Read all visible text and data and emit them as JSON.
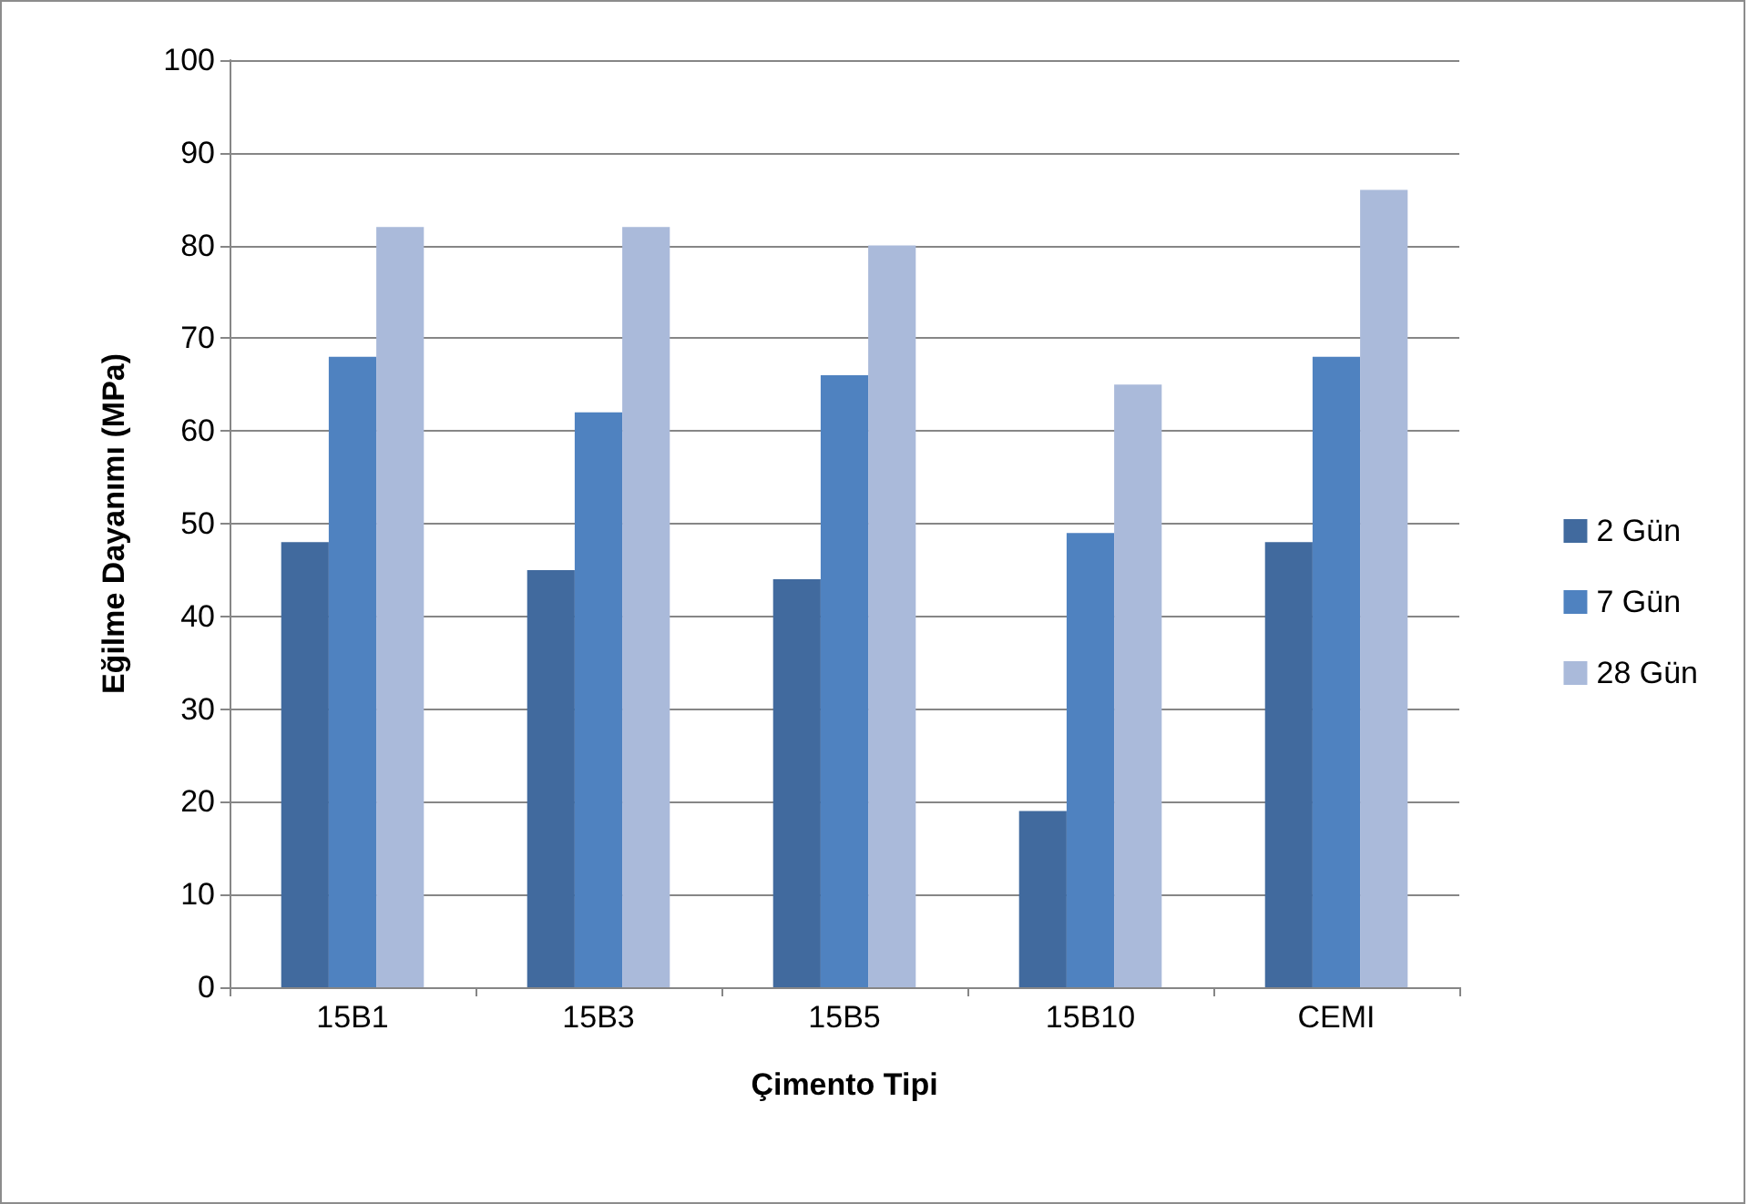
{
  "chart_data": {
    "type": "bar",
    "xlabel": "Çimento Tipi",
    "ylabel": "Eğilme Dayanımı (MPa)",
    "categories": [
      "15B1",
      "15B3",
      "15B5",
      "15B10",
      "CEMI"
    ],
    "series": [
      {
        "name": "2 Gün",
        "color": "#416a9e",
        "values": [
          48,
          45,
          44,
          19,
          48
        ]
      },
      {
        "name": "7 Gün",
        "color": "#4f82c0",
        "values": [
          68,
          62,
          66,
          49,
          68
        ]
      },
      {
        "name": "28 Gün",
        "color": "#aabada",
        "values": [
          82,
          82,
          80,
          65,
          86
        ]
      }
    ],
    "ylim": [
      0,
      100
    ],
    "yticks": [
      0,
      10,
      20,
      30,
      40,
      50,
      60,
      70,
      80,
      90,
      100
    ],
    "grid": "y",
    "legend": "right"
  }
}
